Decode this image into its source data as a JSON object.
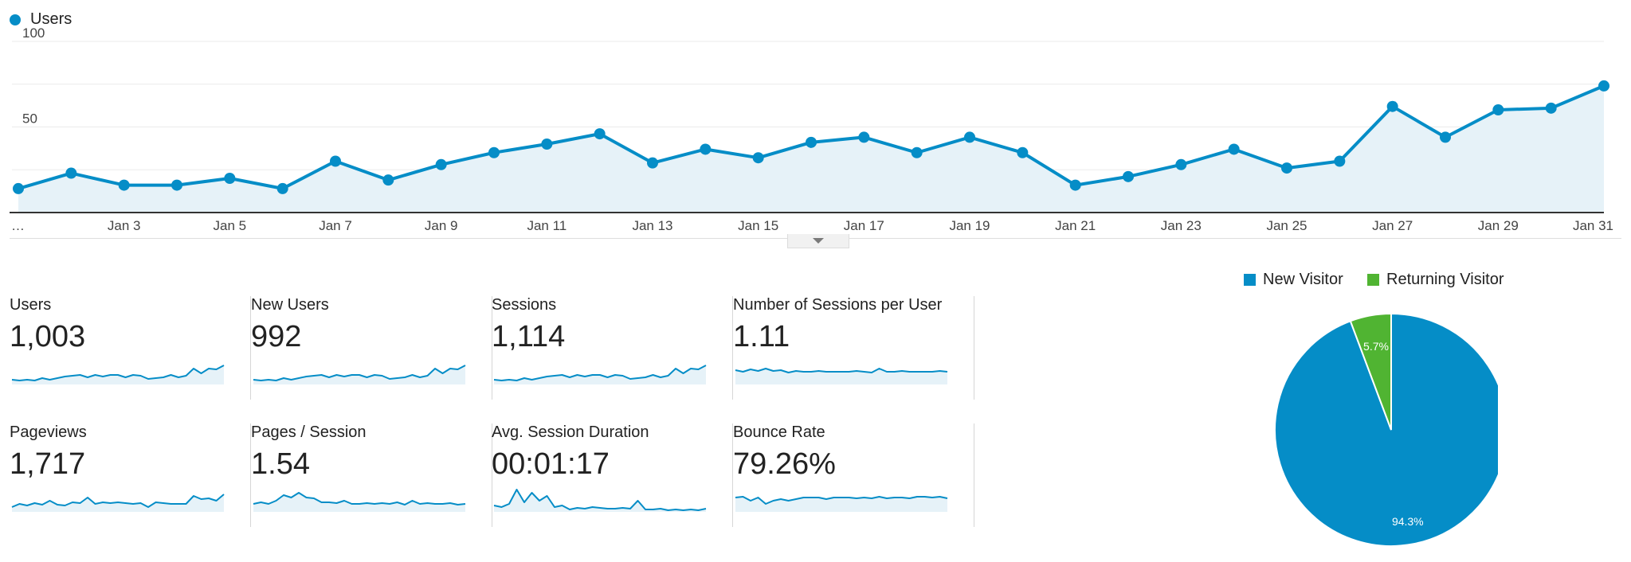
{
  "chart_data": [
    {
      "type": "line",
      "series": [
        {
          "name": "Users",
          "color": "#058dc7",
          "x": [
            "Jan 1",
            "Jan 2",
            "Jan 3",
            "Jan 4",
            "Jan 5",
            "Jan 6",
            "Jan 7",
            "Jan 8",
            "Jan 9",
            "Jan 10",
            "Jan 11",
            "Jan 12",
            "Jan 13",
            "Jan 14",
            "Jan 15",
            "Jan 16",
            "Jan 17",
            "Jan 18",
            "Jan 19",
            "Jan 20",
            "Jan 21",
            "Jan 22",
            "Jan 23",
            "Jan 24",
            "Jan 25",
            "Jan 26",
            "Jan 27",
            "Jan 28",
            "Jan 29",
            "Jan 30",
            "Jan 31"
          ],
          "values": [
            14,
            23,
            16,
            16,
            20,
            14,
            30,
            19,
            28,
            35,
            40,
            46,
            29,
            37,
            32,
            41,
            44,
            35,
            44,
            35,
            16,
            21,
            28,
            37,
            26,
            30,
            62,
            44,
            60,
            61,
            74
          ]
        }
      ],
      "x_tick_labels": [
        "…",
        "Jan 3",
        "Jan 5",
        "Jan 7",
        "Jan 9",
        "Jan 11",
        "Jan 13",
        "Jan 15",
        "Jan 17",
        "Jan 19",
        "Jan 21",
        "Jan 23",
        "Jan 25",
        "Jan 27",
        "Jan 29",
        "Jan 31"
      ],
      "y_tick_labels": [
        "100",
        "50"
      ],
      "ylim": [
        0,
        100
      ],
      "grid": true,
      "legend": "top-left"
    },
    {
      "type": "pie",
      "labels": [
        "New Visitor",
        "Returning Visitor"
      ],
      "values": [
        94.3,
        5.7
      ],
      "value_labels": [
        "94.3%",
        "5.7%"
      ],
      "colors": [
        "#058dc7",
        "#50b432"
      ],
      "legend": "top"
    }
  ],
  "metrics": [
    {
      "label": "Users",
      "value": "1,003",
      "spark": [
        6,
        5,
        6,
        5,
        8,
        6,
        8,
        10,
        11,
        12,
        9,
        12,
        10,
        12,
        12,
        9,
        12,
        11,
        7,
        8,
        9,
        12,
        9,
        11,
        20,
        14,
        20,
        19,
        24
      ]
    },
    {
      "label": "New Users",
      "value": "992",
      "spark": [
        6,
        5,
        6,
        5,
        8,
        6,
        8,
        10,
        11,
        12,
        9,
        12,
        10,
        12,
        12,
        9,
        12,
        11,
        7,
        8,
        9,
        12,
        9,
        11,
        20,
        14,
        20,
        19,
        24
      ]
    },
    {
      "label": "Sessions",
      "value": "1,114",
      "spark": [
        6,
        5,
        6,
        5,
        8,
        6,
        8,
        10,
        11,
        12,
        9,
        12,
        10,
        12,
        12,
        9,
        12,
        11,
        7,
        8,
        9,
        12,
        9,
        11,
        20,
        14,
        20,
        19,
        24
      ]
    },
    {
      "label": "Number of Sessions per User",
      "value": "1.11",
      "spark": [
        18,
        16,
        19,
        17,
        20,
        17,
        18,
        15,
        17,
        16,
        16,
        17,
        16,
        16,
        16,
        16,
        17,
        16,
        15,
        20,
        16,
        16,
        17,
        16,
        16,
        16,
        16,
        17,
        16
      ]
    },
    {
      "label": "Pageviews",
      "value": "1,717",
      "spark": [
        6,
        10,
        8,
        11,
        9,
        14,
        9,
        8,
        12,
        11,
        18,
        10,
        12,
        11,
        12,
        11,
        10,
        11,
        6,
        12,
        11,
        10,
        10,
        10,
        20,
        16,
        17,
        14,
        22
      ]
    },
    {
      "label": "Pages / Session",
      "value": "1.54",
      "spark": [
        10,
        12,
        10,
        14,
        21,
        18,
        24,
        18,
        17,
        12,
        12,
        11,
        14,
        10,
        10,
        11,
        10,
        11,
        10,
        12,
        9,
        14,
        10,
        11,
        10,
        10,
        11,
        9,
        10
      ]
    },
    {
      "label": "Avg. Session Duration",
      "value": "00:01:17",
      "spark": [
        8,
        6,
        10,
        28,
        12,
        24,
        14,
        20,
        6,
        8,
        3,
        5,
        4,
        6,
        5,
        4,
        4,
        5,
        4,
        14,
        3,
        3,
        4,
        2,
        3,
        2,
        3,
        2,
        4
      ]
    },
    {
      "label": "Bounce Rate",
      "value": "79.26%",
      "spark": [
        18,
        19,
        14,
        18,
        10,
        14,
        16,
        14,
        16,
        18,
        18,
        18,
        16,
        18,
        18,
        18,
        17,
        18,
        17,
        19,
        17,
        18,
        18,
        17,
        19,
        19,
        18,
        19,
        17
      ]
    }
  ],
  "colors": {
    "line": "#058dc7",
    "area": "#e6f2f8",
    "new": "#058dc7",
    "returning": "#50b432"
  }
}
